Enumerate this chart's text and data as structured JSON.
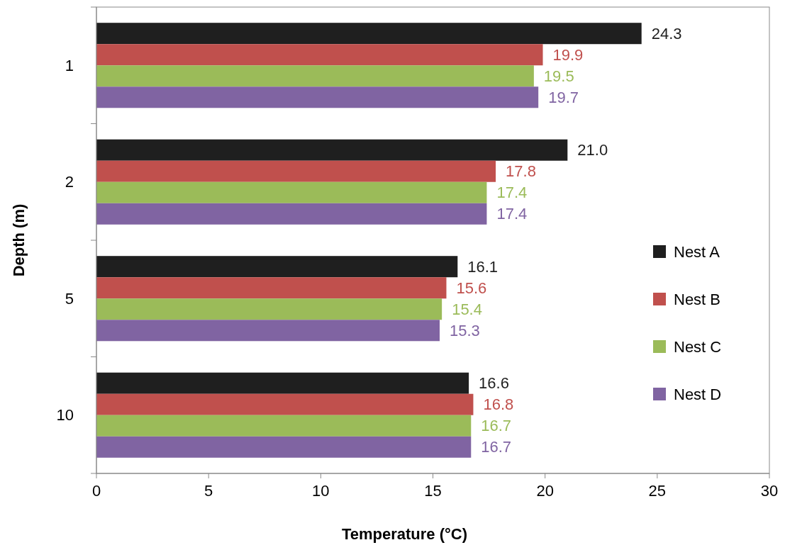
{
  "chart_data": {
    "type": "bar",
    "orientation": "horizontal",
    "xlabel": "Temperature (°C)",
    "ylabel": "Depth (m)",
    "categories": [
      "1",
      "2",
      "5",
      "10"
    ],
    "series": [
      {
        "name": "Nest A",
        "color": "#1f1f1f",
        "values": [
          24.3,
          21.0,
          16.1,
          16.6
        ],
        "value_labels": [
          "24.3",
          "21.0",
          "16.1",
          "16.6"
        ]
      },
      {
        "name": "Nest B",
        "color": "#c0504d",
        "values": [
          19.9,
          17.8,
          15.6,
          16.8
        ],
        "value_labels": [
          "19.9",
          "17.8",
          "15.6",
          "16.8"
        ]
      },
      {
        "name": "Nest C",
        "color": "#9bbb59",
        "values": [
          19.5,
          17.4,
          15.4,
          16.7
        ],
        "value_labels": [
          "19.5",
          "17.4",
          "15.4",
          "16.7"
        ]
      },
      {
        "name": "Nest D",
        "color": "#8064a2",
        "values": [
          19.7,
          17.4,
          15.3,
          16.7
        ],
        "value_labels": [
          "19.7",
          "17.4",
          "15.3",
          "16.7"
        ]
      }
    ],
    "xlim": [
      0,
      30
    ],
    "xticks": [
      0,
      5,
      10,
      15,
      20,
      25,
      30
    ],
    "grid": false,
    "legend": "right"
  }
}
